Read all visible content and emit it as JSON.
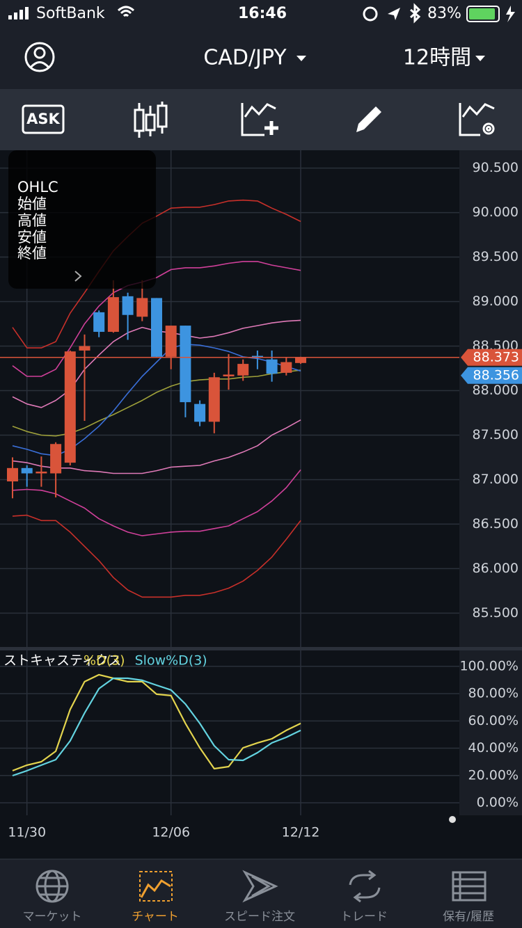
{
  "status_bar": {
    "carrier": "SoftBank",
    "time": "16:46",
    "battery": "83%"
  },
  "header": {
    "pair": "CAD/JPY",
    "timeframe": "12時間"
  },
  "toolbar": {
    "price_side": "ASK"
  },
  "ohlc_panel": {
    "title": "OHLC",
    "labels": [
      "始値",
      "高値",
      "安値",
      "終値"
    ]
  },
  "chart_data": [
    {
      "type": "candlestick",
      "categories": [
        null,
        "11/30",
        null,
        null,
        null,
        null,
        null,
        null,
        null,
        null,
        null,
        "12/06",
        null,
        null,
        null,
        null,
        null,
        null,
        null,
        null,
        "12/12"
      ],
      "open": [
        86.98,
        87.13,
        87.07,
        87.07,
        87.19,
        88.45,
        88.88,
        88.66,
        89.06,
        88.83,
        89.04,
        88.38,
        88.73,
        87.85,
        87.65,
        88.16,
        88.17,
        88.39,
        88.35,
        88.2,
        88.31
      ],
      "high": [
        87.25,
        87.16,
        87.26,
        87.42,
        88.45,
        88.63,
        88.9,
        89.24,
        89.1,
        89.24,
        89.04,
        88.73,
        88.73,
        87.89,
        88.2,
        88.41,
        88.35,
        88.45,
        88.45,
        88.37,
        88.38
      ],
      "low": [
        86.79,
        86.92,
        86.92,
        86.8,
        87.16,
        87.66,
        88.6,
        88.65,
        88.57,
        88.78,
        88.38,
        88.24,
        87.7,
        87.6,
        87.52,
        88.01,
        88.11,
        88.24,
        88.1,
        88.17,
        88.3
      ],
      "close": [
        87.13,
        87.07,
        87.09,
        87.4,
        88.44,
        88.5,
        88.66,
        89.05,
        88.85,
        89.04,
        88.38,
        88.73,
        87.87,
        87.65,
        88.15,
        88.18,
        88.3,
        88.37,
        88.19,
        88.32,
        88.37
      ],
      "up_color": "#d9543a",
      "down_color": "#3d94e0",
      "overlays": [
        {
          "color": "#c8302a",
          "values": [
            88.71,
            88.48,
            88.48,
            88.55,
            88.87,
            89.1,
            89.34,
            89.57,
            89.73,
            89.88,
            89.96,
            90.05,
            90.06,
            90.06,
            90.09,
            90.13,
            90.14,
            90.13,
            90.05,
            89.98,
            89.9
          ]
        },
        {
          "color": "#d0409a",
          "values": [
            88.28,
            88.16,
            88.16,
            88.24,
            88.48,
            88.75,
            88.95,
            89.1,
            89.18,
            89.22,
            89.27,
            89.36,
            89.38,
            89.38,
            89.4,
            89.43,
            89.45,
            89.45,
            89.41,
            89.38,
            89.35
          ]
        },
        {
          "color": "#e07ab8",
          "values": [
            87.93,
            87.85,
            87.81,
            87.89,
            88.01,
            88.24,
            88.4,
            88.55,
            88.65,
            88.71,
            88.67,
            88.65,
            88.62,
            88.59,
            88.61,
            88.65,
            88.7,
            88.73,
            88.76,
            88.78,
            88.79
          ]
        },
        {
          "color": "#9fa13a",
          "values": [
            87.6,
            87.54,
            87.5,
            87.49,
            87.52,
            87.58,
            87.66,
            87.73,
            87.81,
            87.89,
            87.98,
            88.05,
            88.1,
            88.12,
            88.13,
            88.13,
            88.15,
            88.16,
            88.19,
            88.21,
            88.23
          ]
        },
        {
          "color": "#3a6fd8",
          "values": [
            87.38,
            87.34,
            87.29,
            87.27,
            87.34,
            87.46,
            87.6,
            87.77,
            87.97,
            88.16,
            88.32,
            88.48,
            88.52,
            88.51,
            88.48,
            88.44,
            88.38,
            88.36,
            88.32,
            88.27,
            88.22
          ]
        },
        {
          "color": "#e07ab8",
          "values": [
            87.21,
            87.19,
            87.15,
            87.13,
            87.13,
            87.1,
            87.09,
            87.07,
            87.07,
            87.07,
            87.1,
            87.14,
            87.15,
            87.16,
            87.21,
            87.25,
            87.31,
            87.38,
            87.5,
            87.58,
            87.67
          ]
        },
        {
          "color": "#d0409a",
          "values": [
            86.88,
            86.89,
            86.88,
            86.84,
            86.76,
            86.68,
            86.56,
            86.48,
            86.41,
            86.37,
            86.39,
            86.41,
            86.42,
            86.42,
            86.45,
            86.48,
            86.56,
            86.64,
            86.76,
            86.91,
            87.11
          ]
        },
        {
          "color": "#c8302a",
          "values": [
            86.59,
            86.6,
            86.54,
            86.54,
            86.41,
            86.25,
            86.09,
            85.9,
            85.76,
            85.68,
            85.68,
            85.68,
            85.7,
            85.7,
            85.73,
            85.78,
            85.86,
            85.98,
            86.13,
            86.33,
            86.54
          ]
        }
      ],
      "price_lines": [
        {
          "value": 88.373,
          "color": "#d9543a"
        },
        {
          "value": 88.356,
          "color": "#3d94e0"
        }
      ],
      "ylim": [
        85.12,
        90.7
      ],
      "yticks": [
        {
          "value": 85.5,
          "label": "85.500"
        },
        {
          "value": 86,
          "label": "86.000"
        },
        {
          "value": 86.5,
          "label": "86.500"
        },
        {
          "value": 87,
          "label": "87.000"
        },
        {
          "value": 87.5,
          "label": "87.500"
        },
        {
          "value": 88,
          "label": "88.000"
        },
        {
          "value": 88.5,
          "label": "88.500"
        },
        {
          "value": 89,
          "label": "89.000"
        },
        {
          "value": 89.5,
          "label": "89.500"
        },
        {
          "value": 90,
          "label": "90.000"
        },
        {
          "value": 90.5,
          "label": "90.500"
        }
      ],
      "grid": true
    },
    {
      "type": "line",
      "title": "ストキャスティクス",
      "series": [
        {
          "name": "%D(3)",
          "color": "#e3d44e",
          "values": [
            23.5,
            27.6,
            30.1,
            37.8,
            68.4,
            88.8,
            93.9,
            91.3,
            88.8,
            88.8,
            79.6,
            78.6,
            58.2,
            40.3,
            25.0,
            26.5,
            40.3,
            43.9,
            46.9,
            53.1,
            58.2
          ]
        },
        {
          "name": "Slow%D(3)",
          "color": "#63d3e0",
          "values": [
            19.9,
            23.5,
            27.6,
            31.6,
            45.4,
            65.8,
            83.7,
            91.3,
            91.3,
            89.8,
            86.2,
            82.7,
            72.4,
            58.2,
            41.8,
            31.6,
            31.1,
            36.7,
            43.9,
            48.0,
            53.1
          ]
        }
      ],
      "ylim": [
        -9.2,
        111.7
      ],
      "yticks": [
        {
          "value": 0,
          "label": "0.00%"
        },
        {
          "value": 20,
          "label": "20.00%"
        },
        {
          "value": 40,
          "label": "40.00%"
        },
        {
          "value": 60,
          "label": "60.00%"
        },
        {
          "value": 80,
          "label": "80.00%"
        },
        {
          "value": 100,
          "label": "100.00%"
        }
      ],
      "grid": true
    }
  ],
  "tab_bar": {
    "items": [
      "マーケット",
      "チャート",
      "スピード注文",
      "トレード",
      "保有/履歴"
    ],
    "active": 1
  }
}
